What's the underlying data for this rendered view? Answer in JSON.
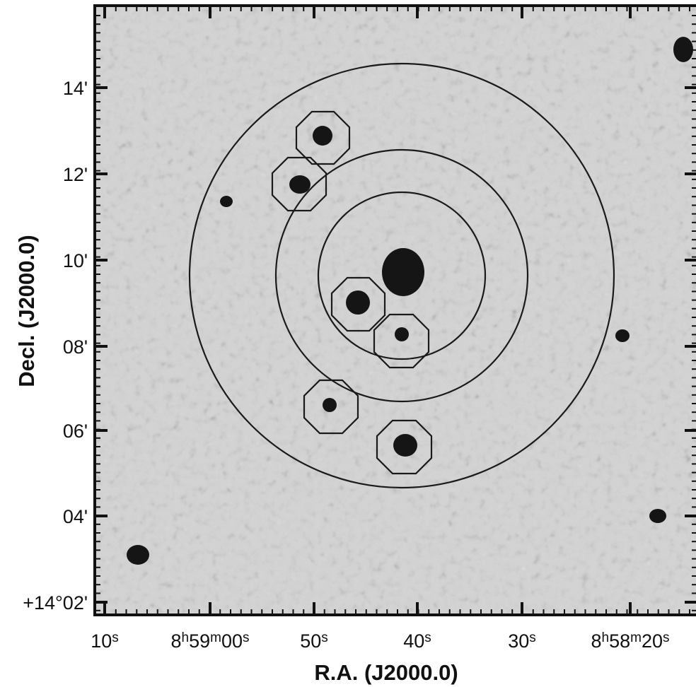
{
  "figure": {
    "x_axis_title": "R.A. (J2000.0)",
    "y_axis_title": "Decl. (J2000.0)",
    "x_ticks": [
      {
        "parts": [
          {
            "t": "10"
          },
          {
            "t": "s",
            "sup": true
          }
        ]
      },
      {
        "parts": [
          {
            "t": "8"
          },
          {
            "t": "h",
            "sup": true
          },
          {
            "t": "59"
          },
          {
            "t": "m",
            "sup": true
          },
          {
            "t": "00"
          },
          {
            "t": "s",
            "sup": true
          }
        ]
      },
      {
        "parts": [
          {
            "t": "50"
          },
          {
            "t": "s",
            "sup": true
          }
        ]
      },
      {
        "parts": [
          {
            "t": "40"
          },
          {
            "t": "s",
            "sup": true
          }
        ]
      },
      {
        "parts": [
          {
            "t": "30"
          },
          {
            "t": "s",
            "sup": true
          }
        ]
      },
      {
        "parts": [
          {
            "t": "8"
          },
          {
            "t": "h",
            "sup": true
          },
          {
            "t": "58"
          },
          {
            "t": "m",
            "sup": true
          },
          {
            "t": "20"
          },
          {
            "t": "s",
            "sup": true
          }
        ]
      }
    ],
    "y_ticks": [
      "14'",
      "12'",
      "10'",
      "08'",
      "06'",
      "04'",
      "+14°02'"
    ],
    "colors": {
      "frame": "#111111",
      "background": "#d2d2d2",
      "source": "#1a1a1a"
    }
  }
}
